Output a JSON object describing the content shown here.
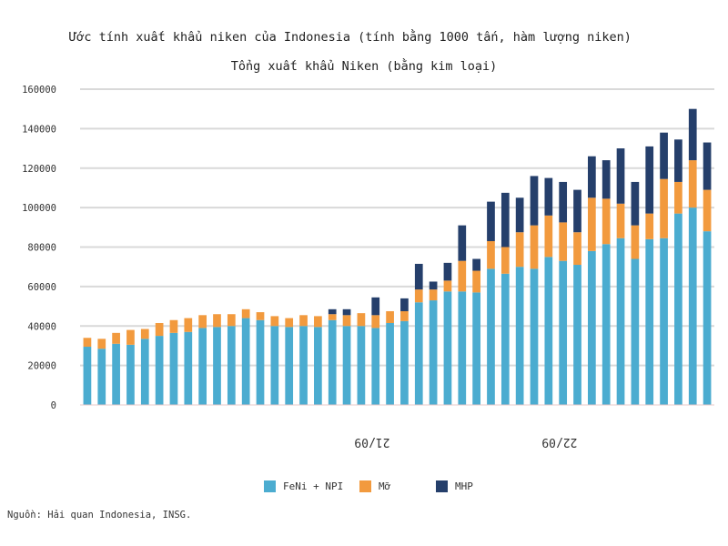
{
  "chart_data": {
    "type": "bar",
    "stacked": true,
    "title": "Ước tính xuất khẩu niken của Indonesia (tính bằng 1000 tấn, hàm lượng niken)",
    "subtitle": "Tổng xuất khẩu Niken (bằng kim loại)",
    "xlabel": "",
    "ylabel": "",
    "ylim": [
      0,
      160000
    ],
    "yticks": [
      0,
      20000,
      40000,
      60000,
      80000,
      100000,
      120000,
      140000,
      160000
    ],
    "grid": true,
    "legend_position": "bottom",
    "x_markers": [
      {
        "index": 19,
        "label": "21/09"
      },
      {
        "index": 32,
        "label": "22/09"
      }
    ],
    "categories": [
      "",
      "",
      "",
      "",
      "",
      "",
      "",
      "",
      "",
      "",
      "",
      "",
      "",
      "",
      "",
      "",
      "",
      "",
      "",
      "",
      "",
      "",
      "",
      "",
      "",
      "",
      "",
      "",
      "",
      "",
      "",
      "",
      "",
      "",
      "",
      "",
      "",
      "",
      "",
      "",
      "",
      "",
      "",
      ""
    ],
    "series": [
      {
        "name": "FeNi + NPI",
        "color": "#4bacd0",
        "values": [
          29500,
          28500,
          31000,
          30500,
          33500,
          35000,
          36500,
          37000,
          39000,
          39500,
          40000,
          44000,
          43000,
          40000,
          39500,
          40000,
          39500,
          43000,
          40000,
          40000,
          39000,
          41500,
          42500,
          52000,
          53000,
          57500,
          57500,
          57000,
          69000,
          66500,
          70000,
          69000,
          75000,
          73000,
          71000,
          78000,
          81500,
          84500,
          74000,
          84000,
          84500,
          97000,
          100000,
          88000
        ]
      },
      {
        "name": "Mỡ",
        "color": "#f29a3e",
        "values": [
          4500,
          5000,
          5500,
          7500,
          5000,
          6500,
          6500,
          7000,
          6500,
          6500,
          6000,
          4500,
          4000,
          5000,
          4500,
          5500,
          5500,
          3000,
          5500,
          6500,
          6500,
          6000,
          5000,
          6500,
          5500,
          5500,
          15500,
          11000,
          14000,
          13500,
          17500,
          22000,
          21000,
          19500,
          16500,
          27000,
          23000,
          17500,
          17000,
          13000,
          30000,
          16000,
          24000,
          21000
        ]
      },
      {
        "name": "MHP",
        "color": "#253f6b",
        "values": [
          0,
          0,
          0,
          0,
          0,
          0,
          0,
          0,
          0,
          0,
          0,
          0,
          0,
          0,
          0,
          0,
          0,
          2500,
          3000,
          0,
          9000,
          0,
          6500,
          13000,
          4000,
          9000,
          18000,
          6000,
          20000,
          27500,
          17500,
          25000,
          19000,
          20500,
          21500,
          21000,
          19500,
          28000,
          22000,
          34000,
          23500,
          21500,
          26000,
          24000
        ]
      }
    ]
  },
  "legend": [
    {
      "label": "FeNi + NPI",
      "color": "#4bacd0"
    },
    {
      "label": "Mỡ",
      "color": "#f29a3e"
    },
    {
      "label": "MHP",
      "color": "#253f6b"
    }
  ],
  "source": "Nguồn: Hải quan Indonesia, INSG."
}
